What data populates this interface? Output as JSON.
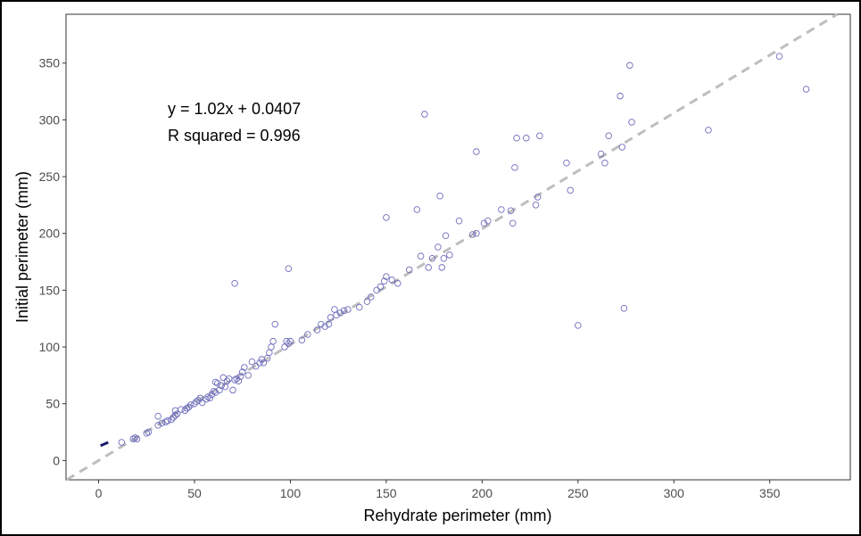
{
  "chart_data": {
    "type": "scatter",
    "title": "",
    "xlabel": "Rehydrate perimeter (mm)",
    "ylabel": "Initial perimeter (mm)",
    "xlim": [
      -17,
      392
    ],
    "ylim": [
      -17,
      393
    ],
    "xticks": [
      0,
      50,
      100,
      150,
      200,
      250,
      300,
      350
    ],
    "yticks": [
      0,
      50,
      100,
      150,
      200,
      250,
      300,
      350
    ],
    "grid": false,
    "legend": "none",
    "annotations": [
      "y = 1.02x + 0.0407",
      "R squared = 0.996"
    ],
    "fit_line": {
      "slope": 1.02,
      "intercept": 0.0407,
      "style": "dashed",
      "color": "#bebebe"
    },
    "marker_color": "#6e6ebe",
    "segment_color": "#1a1a6e",
    "segment": {
      "x": [
        1,
        5
      ],
      "y": [
        13,
        16
      ]
    },
    "points": [
      [
        12,
        16
      ],
      [
        18,
        19
      ],
      [
        19,
        20
      ],
      [
        20,
        19
      ],
      [
        25,
        24
      ],
      [
        26,
        25
      ],
      [
        31,
        31
      ],
      [
        31,
        39
      ],
      [
        33,
        33
      ],
      [
        35,
        34
      ],
      [
        36,
        35
      ],
      [
        38,
        36
      ],
      [
        39,
        38
      ],
      [
        40,
        40
      ],
      [
        41,
        41
      ],
      [
        40,
        44
      ],
      [
        43,
        45
      ],
      [
        45,
        44
      ],
      [
        46,
        46
      ],
      [
        47,
        47
      ],
      [
        48,
        49
      ],
      [
        50,
        50
      ],
      [
        51,
        52
      ],
      [
        52,
        53
      ],
      [
        53,
        55
      ],
      [
        54,
        51
      ],
      [
        56,
        54
      ],
      [
        57,
        56
      ],
      [
        58,
        55
      ],
      [
        59,
        58
      ],
      [
        60,
        61
      ],
      [
        61,
        60
      ],
      [
        61,
        69
      ],
      [
        62,
        68
      ],
      [
        63,
        62
      ],
      [
        64,
        66
      ],
      [
        65,
        73
      ],
      [
        66,
        65
      ],
      [
        67,
        70
      ],
      [
        68,
        72
      ],
      [
        70,
        62
      ],
      [
        71,
        71
      ],
      [
        72,
        72
      ],
      [
        73,
        70
      ],
      [
        74,
        74
      ],
      [
        75,
        78
      ],
      [
        76,
        82
      ],
      [
        78,
        75
      ],
      [
        71,
        156
      ],
      [
        80,
        87
      ],
      [
        82,
        83
      ],
      [
        84,
        86
      ],
      [
        85,
        89
      ],
      [
        86,
        86
      ],
      [
        88,
        90
      ],
      [
        89,
        95
      ],
      [
        90,
        100
      ],
      [
        91,
        105
      ],
      [
        92,
        120
      ],
      [
        97,
        100
      ],
      [
        98,
        105
      ],
      [
        99,
        103
      ],
      [
        100,
        105
      ],
      [
        99,
        169
      ],
      [
        106,
        106
      ],
      [
        109,
        111
      ],
      [
        114,
        115
      ],
      [
        116,
        120
      ],
      [
        118,
        118
      ],
      [
        120,
        120
      ],
      [
        121,
        126
      ],
      [
        123,
        133
      ],
      [
        124,
        128
      ],
      [
        126,
        130
      ],
      [
        128,
        132
      ],
      [
        130,
        133
      ],
      [
        136,
        135
      ],
      [
        140,
        140
      ],
      [
        142,
        144
      ],
      [
        145,
        150
      ],
      [
        147,
        153
      ],
      [
        149,
        158
      ],
      [
        150,
        162
      ],
      [
        150,
        214
      ],
      [
        153,
        159
      ],
      [
        156,
        156
      ],
      [
        162,
        168
      ],
      [
        166,
        221
      ],
      [
        168,
        180
      ],
      [
        170,
        305
      ],
      [
        172,
        170
      ],
      [
        174,
        178
      ],
      [
        177,
        188
      ],
      [
        178,
        233
      ],
      [
        179,
        170
      ],
      [
        180,
        178
      ],
      [
        181,
        198
      ],
      [
        183,
        181
      ],
      [
        188,
        211
      ],
      [
        195,
        199
      ],
      [
        197,
        200
      ],
      [
        197,
        272
      ],
      [
        201,
        209
      ],
      [
        203,
        211
      ],
      [
        210,
        221
      ],
      [
        215,
        220
      ],
      [
        216,
        209
      ],
      [
        217,
        258
      ],
      [
        218,
        284
      ],
      [
        223,
        284
      ],
      [
        228,
        225
      ],
      [
        229,
        232
      ],
      [
        230,
        286
      ],
      [
        244,
        262
      ],
      [
        246,
        238
      ],
      [
        250,
        119
      ],
      [
        262,
        270
      ],
      [
        264,
        262
      ],
      [
        266,
        286
      ],
      [
        272,
        321
      ],
      [
        273,
        276
      ],
      [
        274,
        134
      ],
      [
        277,
        348
      ],
      [
        278,
        298
      ],
      [
        318,
        291
      ],
      [
        355,
        356
      ],
      [
        369,
        327
      ]
    ]
  }
}
